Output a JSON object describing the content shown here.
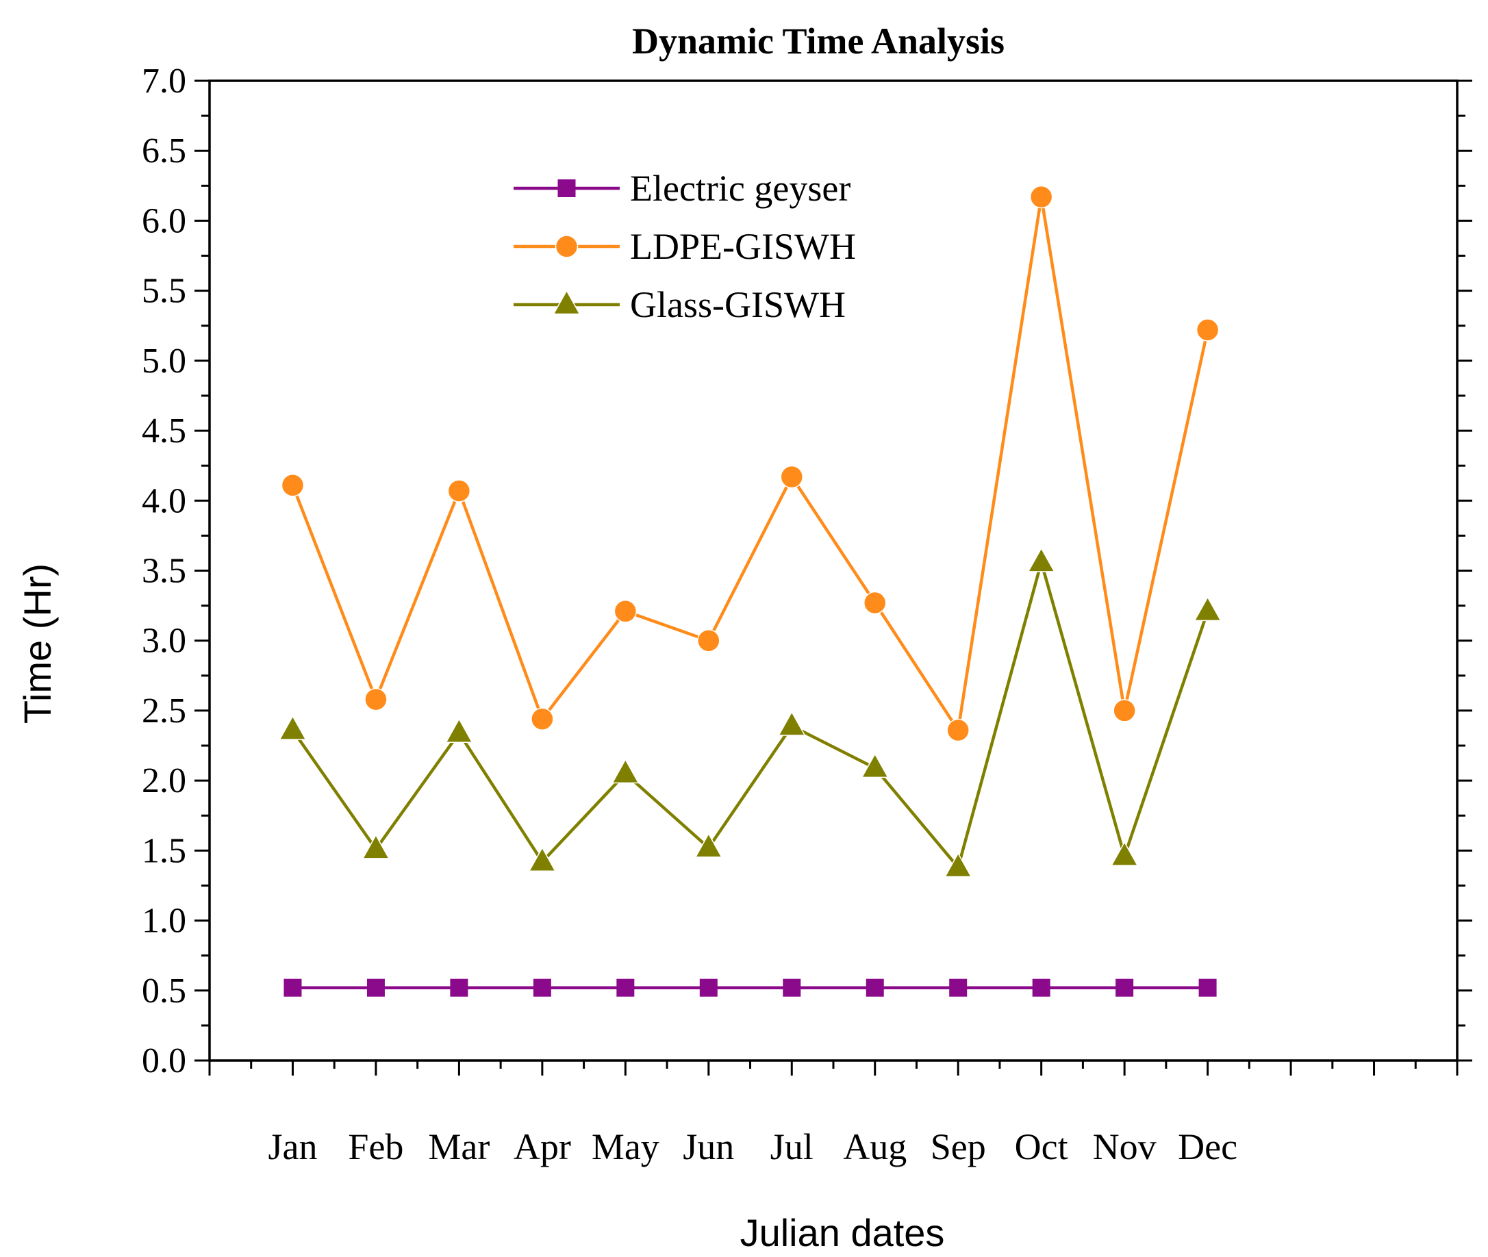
{
  "chart_data": {
    "type": "line",
    "title": "Dynamic Time Analysis",
    "xlabel": "Julian dates",
    "ylabel": "Time (Hr)",
    "categories": [
      "Jan",
      "Feb",
      "Mar",
      "Apr",
      "May",
      "Jun",
      "Jul",
      "Aug",
      "Sep",
      "Oct",
      "Nov",
      "Dec"
    ],
    "ylim": [
      0.0,
      7.0
    ],
    "yticks": [
      "0.0",
      "0.5",
      "1.0",
      "1.5",
      "2.0",
      "2.5",
      "3.0",
      "3.5",
      "4.0",
      "4.5",
      "5.0",
      "5.5",
      "6.0",
      "6.5",
      "7.0"
    ],
    "legend_position": "top-center",
    "grid": false,
    "series": [
      {
        "name": "Electric geyser",
        "marker": "square",
        "color": "#8B0A8B",
        "values": [
          0.52,
          0.52,
          0.52,
          0.52,
          0.52,
          0.52,
          0.52,
          0.52,
          0.52,
          0.52,
          0.52,
          0.52
        ]
      },
      {
        "name": "LDPE-GISWH",
        "marker": "circle",
        "color": "#FF8C1A",
        "values": [
          4.11,
          2.58,
          4.07,
          2.44,
          3.21,
          3.0,
          4.17,
          3.27,
          2.36,
          6.17,
          2.5,
          5.22
        ]
      },
      {
        "name": "Glass-GISWH",
        "marker": "triangle",
        "color": "#808000",
        "values": [
          2.36,
          1.51,
          2.34,
          1.42,
          2.05,
          1.52,
          2.39,
          2.09,
          1.38,
          3.56,
          1.46,
          3.21
        ]
      }
    ]
  }
}
